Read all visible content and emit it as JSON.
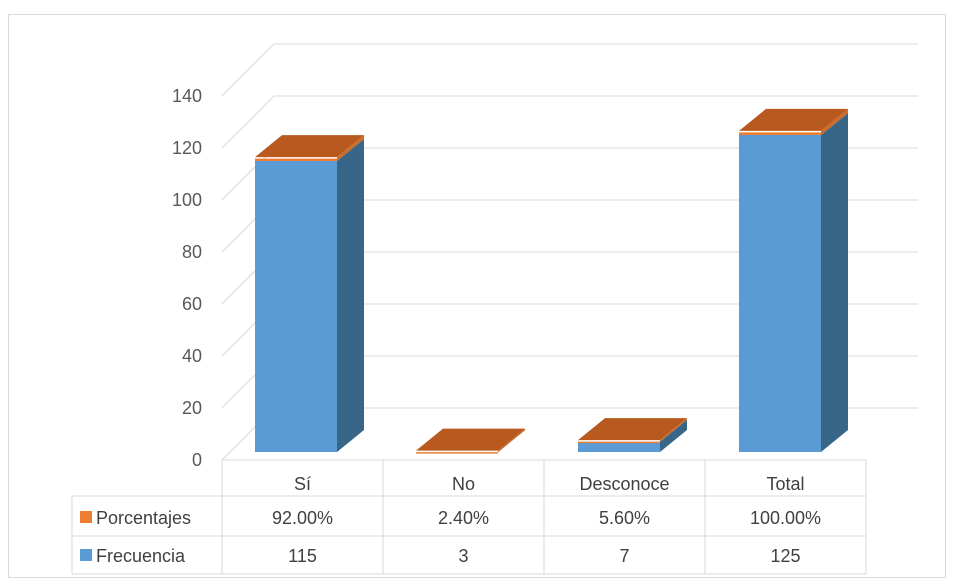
{
  "chart_data": {
    "type": "bar",
    "style": "3d-stacked-column",
    "categories": [
      "Sí",
      "No",
      "Desconoce",
      "Total"
    ],
    "series": [
      {
        "name": "Frecuencia",
        "values": [
          115,
          3,
          7,
          125
        ],
        "labels": [
          "115",
          "3",
          "7",
          "125"
        ],
        "color": "#5b9bd5"
      },
      {
        "name": "Porcentajes",
        "values": [
          0.92,
          0.024,
          0.056,
          1.0
        ],
        "labels": [
          "92.00%",
          "2.40%",
          "5.60%",
          "100.00%"
        ],
        "color": "#ed7d31"
      }
    ],
    "y_ticks": [
      "0",
      "20",
      "40",
      "60",
      "80",
      "100",
      "120",
      "140"
    ],
    "ylim": [
      0,
      140
    ],
    "grid": true,
    "data_table": true,
    "legend": "in-data-table"
  }
}
